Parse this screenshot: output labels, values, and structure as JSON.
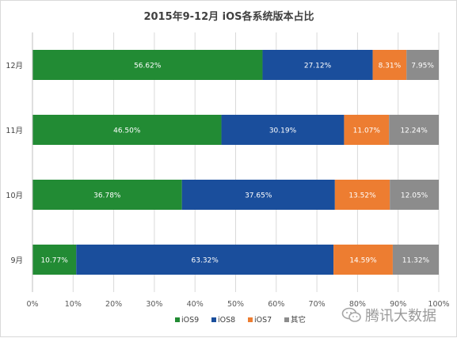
{
  "chart_data": {
    "type": "bar",
    "orientation": "horizontal",
    "stacked": true,
    "title": "2015年9-12月 iOS各系统版本占比",
    "categories": [
      "12月",
      "11月",
      "10月",
      "9月"
    ],
    "series": [
      {
        "name": "iOS9",
        "color": "#228b34",
        "values": [
          56.62,
          46.5,
          36.78,
          10.77
        ],
        "labels": [
          "56.62%",
          "46.50%",
          "36.78%",
          "10.77%"
        ]
      },
      {
        "name": "iOS8",
        "color": "#1a4e9c",
        "values": [
          27.12,
          30.19,
          37.65,
          63.32
        ],
        "labels": [
          "27.12%",
          "30.19%",
          "37.65%",
          "63.32%"
        ]
      },
      {
        "name": "iOS7",
        "color": "#ed7d31",
        "values": [
          8.31,
          11.07,
          13.52,
          14.59
        ],
        "labels": [
          "8.31%",
          "11.07%",
          "13.52%",
          "14.59%"
        ]
      },
      {
        "name": "其它",
        "color": "#8c8c8c",
        "values": [
          7.95,
          12.24,
          12.05,
          11.32
        ],
        "labels": [
          "7.95%",
          "12.24%",
          "12.05%",
          "11.32%"
        ]
      }
    ],
    "xlim": [
      0,
      100
    ],
    "x_ticks": [
      "0%",
      "10%",
      "20%",
      "30%",
      "40%",
      "50%",
      "60%",
      "70%",
      "80%",
      "90%",
      "100%"
    ],
    "grid": true,
    "legend_position": "bottom"
  },
  "watermark": {
    "text": "腾讯大数据",
    "icon": "wechat-icon"
  }
}
